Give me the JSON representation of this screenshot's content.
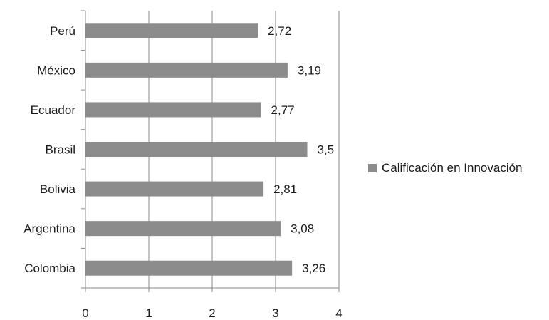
{
  "chart_data": {
    "type": "bar",
    "orientation": "horizontal",
    "categories": [
      "Colombia",
      "Argentina",
      "Bolivia",
      "Brasil",
      "Ecuador",
      "México",
      "Perú"
    ],
    "series": [
      {
        "name": "Calificación en Innovación",
        "values": [
          3.26,
          3.08,
          2.81,
          3.5,
          2.77,
          3.19,
          2.72
        ],
        "data_labels": [
          "3,26",
          "3,08",
          "2,81",
          "3,5",
          "2,77",
          "3,19",
          "2,72"
        ]
      }
    ],
    "xlim": [
      0,
      4
    ],
    "xticks": [
      0,
      1,
      2,
      3,
      4
    ],
    "xtick_labels": [
      "0",
      "1",
      "2",
      "3",
      "4"
    ],
    "grid": true,
    "legend_position": "right",
    "bar_color": "#8c8c8c",
    "title": "",
    "xlabel": "",
    "ylabel": ""
  }
}
